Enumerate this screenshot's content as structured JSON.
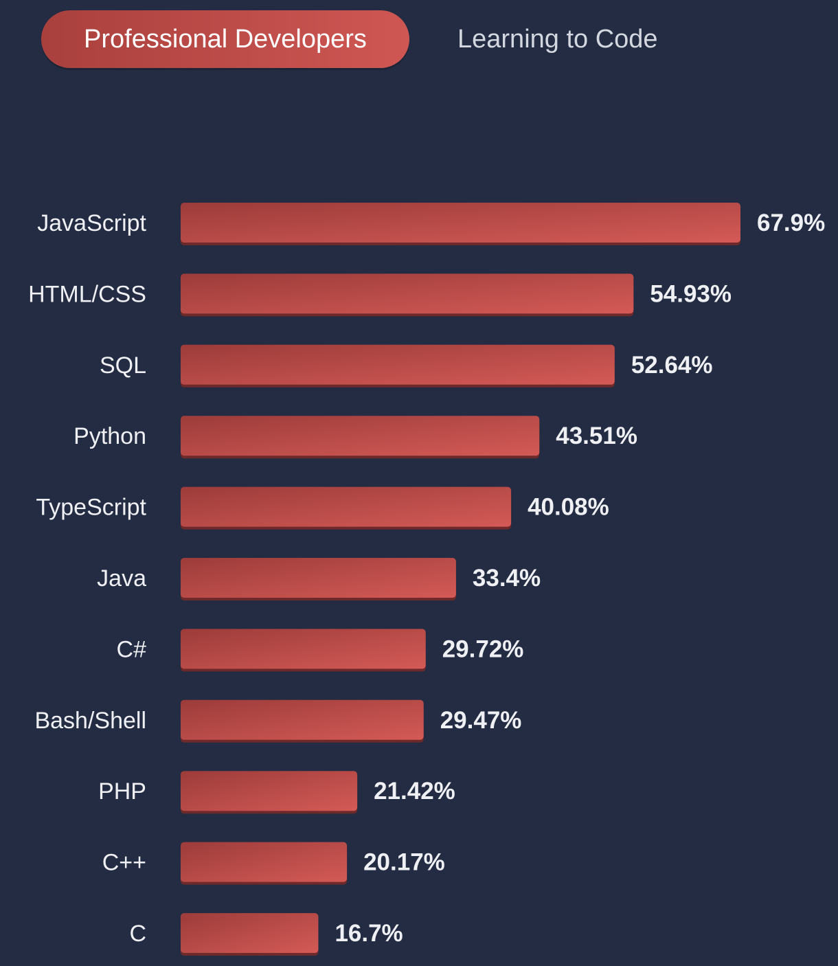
{
  "tabs": [
    {
      "label": "Professional Developers",
      "active": true
    },
    {
      "label": "Learning to Code",
      "active": false
    }
  ],
  "colors": {
    "background": "#232c42",
    "bar_start": "#9c3c3a",
    "bar_end": "#d45a56",
    "bar_shadow": "#6e2a2a",
    "text": "#eef0f4"
  },
  "chart_data": {
    "type": "bar",
    "orientation": "horizontal",
    "categories": [
      "JavaScript",
      "HTML/CSS",
      "SQL",
      "Python",
      "TypeScript",
      "Java",
      "C#",
      "Bash/Shell",
      "PHP",
      "C++",
      "C"
    ],
    "values": [
      67.9,
      54.93,
      52.64,
      43.51,
      40.08,
      33.4,
      29.72,
      29.47,
      21.42,
      20.17,
      16.7
    ],
    "value_labels": [
      "67.9%",
      "54.93%",
      "52.64%",
      "43.51%",
      "40.08%",
      "33.4%",
      "29.72%",
      "29.47%",
      "21.42%",
      "20.17%",
      "16.7%"
    ],
    "unit": "%",
    "grid": false,
    "legend": "none"
  }
}
